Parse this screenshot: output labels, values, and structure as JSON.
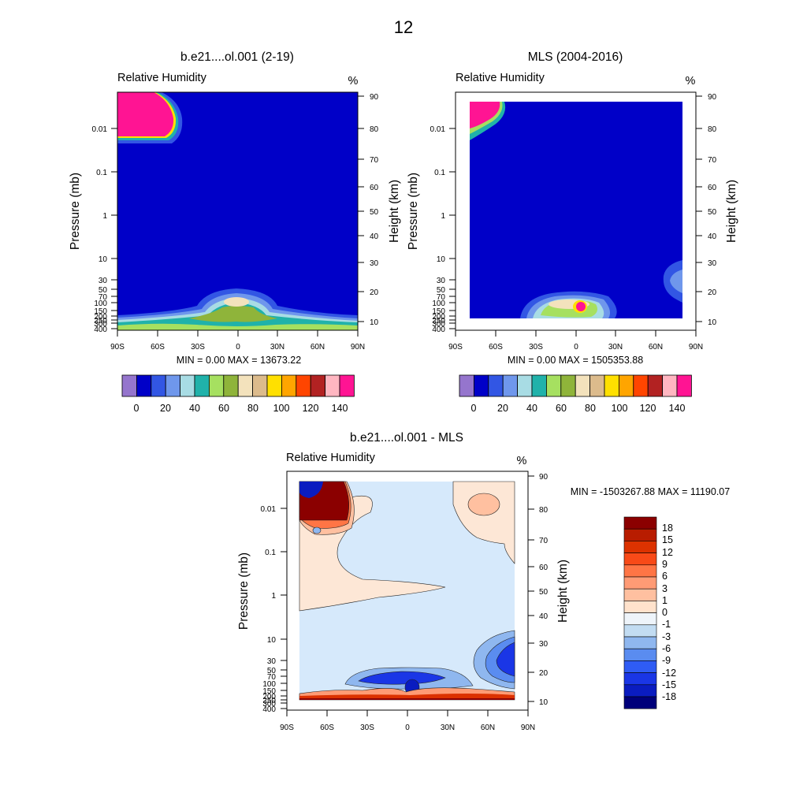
{
  "figure": {
    "page_title": "12"
  },
  "chart_data": [
    {
      "id": "model",
      "type": "heatmap",
      "title": "b.e21....ol.001 (2-19)",
      "subtitle": "Relative Humidity",
      "units": "%",
      "xlabel": "",
      "ylabel": "Pressure (mb)",
      "ylabel_right": "Height (km)",
      "x_ticks": [
        "90S",
        "60S",
        "30S",
        "0",
        "30N",
        "60N",
        "90N"
      ],
      "y_ticks": [
        "0.01",
        "0.1",
        "1",
        "10",
        "30",
        "50",
        "70",
        "100",
        "150",
        "200",
        "250",
        "300",
        "400"
      ],
      "y_right_ticks": [
        "90",
        "80",
        "70",
        "60",
        "50",
        "40",
        "30",
        "20",
        "10"
      ],
      "xlim": [
        -90,
        90
      ],
      "ylim": [
        400,
        0.001
      ],
      "min_label": "MIN =   0.00  MAX = 13673.22",
      "colorbar": {
        "tick_labels": [
          "0",
          "20",
          "40",
          "60",
          "80",
          "100",
          "120",
          "140"
        ],
        "colors": [
          "#9575cd",
          "#0000c8",
          "#3256e4",
          "#6f97ec",
          "#a8dce4",
          "#20b2aa",
          "#a6e060",
          "#8fb43a",
          "#f3e2bc",
          "#dcbb8c",
          "#ffe000",
          "#ffa500",
          "#ff4500",
          "#b22222",
          "#ffb6c1",
          "#ff1493"
        ]
      }
    },
    {
      "id": "obs",
      "type": "heatmap",
      "title": "MLS (2004-2016)",
      "subtitle": "Relative Humidity",
      "units": "%",
      "xlabel": "",
      "ylabel": "Pressure (mb)",
      "ylabel_right": "Height (km)",
      "x_ticks": [
        "90S",
        "60S",
        "30S",
        "0",
        "30N",
        "60N",
        "90N"
      ],
      "y_ticks": [
        "0.01",
        "0.1",
        "1",
        "10",
        "30",
        "50",
        "70",
        "100",
        "150",
        "200",
        "250",
        "300",
        "400"
      ],
      "y_right_ticks": [
        "90",
        "80",
        "70",
        "60",
        "50",
        "40",
        "30",
        "20",
        "10"
      ],
      "xlim": [
        -90,
        90
      ],
      "ylim": [
        400,
        0.001
      ],
      "min_label": "MIN =   0.00  MAX = 1505353.88",
      "colorbar": {
        "tick_labels": [
          "0",
          "20",
          "40",
          "60",
          "80",
          "100",
          "120",
          "140"
        ],
        "colors": [
          "#9575cd",
          "#0000c8",
          "#3256e4",
          "#6f97ec",
          "#a8dce4",
          "#20b2aa",
          "#a6e060",
          "#8fb43a",
          "#f3e2bc",
          "#dcbb8c",
          "#ffe000",
          "#ffa500",
          "#ff4500",
          "#b22222",
          "#ffb6c1",
          "#ff1493"
        ]
      }
    },
    {
      "id": "diff",
      "type": "heatmap",
      "title": "b.e21....ol.001 - MLS",
      "subtitle": "Relative Humidity",
      "units": "%",
      "xlabel": "",
      "ylabel": "Pressure (mb)",
      "ylabel_right": "Height (km)",
      "x_ticks": [
        "90S",
        "60S",
        "30S",
        "0",
        "30N",
        "60N",
        "90N"
      ],
      "y_ticks": [
        "0.01",
        "0.1",
        "1",
        "10",
        "30",
        "50",
        "70",
        "100",
        "150",
        "200",
        "250",
        "300",
        "400"
      ],
      "y_right_ticks": [
        "90",
        "80",
        "70",
        "60",
        "50",
        "40",
        "30",
        "20",
        "10"
      ],
      "xlim": [
        -90,
        90
      ],
      "ylim": [
        400,
        0.001
      ],
      "min_label": "MIN = -1503267.88  MAX = 11190.07",
      "colorbar": {
        "tick_labels": [
          "18",
          "15",
          "12",
          "9",
          "6",
          "3",
          "1",
          "0",
          "-1",
          "-3",
          "-6",
          "-9",
          "-12",
          "-15",
          "-18"
        ],
        "colors": [
          "#8b0000",
          "#b81c00",
          "#dc3200",
          "#f84a18",
          "#ff7545",
          "#ff9b75",
          "#ffc0a0",
          "#ffe2cc",
          "#eef4fa",
          "#c2dcf2",
          "#8fb7ef",
          "#5a8cf0",
          "#2f5cf4",
          "#1a36e6",
          "#0a1cc0",
          "#00007a"
        ]
      }
    }
  ]
}
